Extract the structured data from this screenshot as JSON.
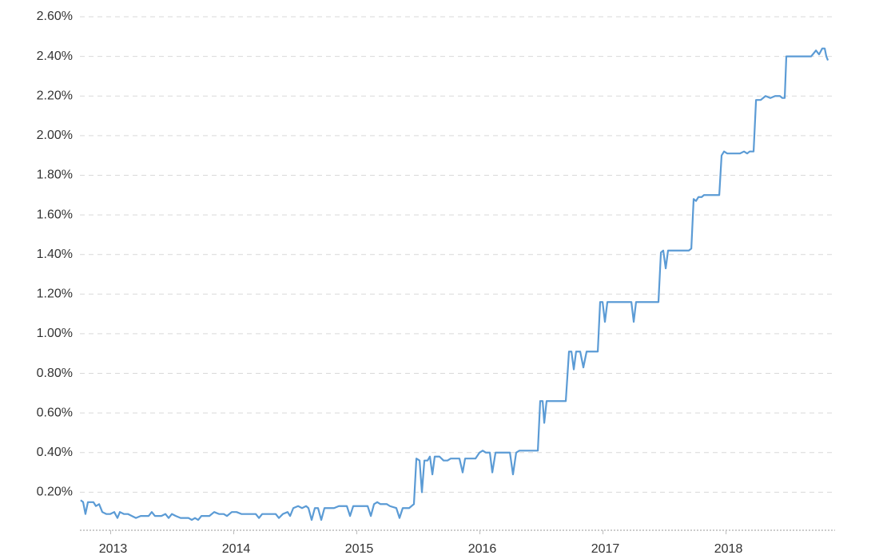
{
  "chart_data": {
    "type": "line",
    "xlim": [
      2012.75,
      2018.886
    ],
    "xticks": [
      2013,
      2014,
      2015,
      2016,
      2017,
      2018
    ],
    "ylim": [
      0,
      2.6
    ],
    "yticks": [
      {
        "value": 0.2,
        "label": "0.20%"
      },
      {
        "value": 0.4,
        "label": "0.40%"
      },
      {
        "value": 0.6,
        "label": "0.60%"
      },
      {
        "value": 0.8,
        "label": "0.80%"
      },
      {
        "value": 1.0,
        "label": "1.00%"
      },
      {
        "value": 1.2,
        "label": "1.20%"
      },
      {
        "value": 1.4,
        "label": "1.40%"
      },
      {
        "value": 1.6,
        "label": "1.60%"
      },
      {
        "value": 1.8,
        "label": "1.80%"
      },
      {
        "value": 2.0,
        "label": "2.00%"
      },
      {
        "value": 2.2,
        "label": "2.20%"
      },
      {
        "value": 2.4,
        "label": "2.40%"
      },
      {
        "value": 2.6,
        "label": "2.60%"
      }
    ],
    "grid": true,
    "color": "#5b9bd5",
    "x": [
      2012.756,
      2012.776,
      2012.795,
      2012.815,
      2012.86,
      2012.88,
      2012.906,
      2012.932,
      2012.964,
      2012.997,
      2013.029,
      2013.055,
      2013.075,
      2013.107,
      2013.14,
      2013.172,
      2013.205,
      2013.244,
      2013.308,
      2013.334,
      2013.36,
      2013.412,
      2013.445,
      2013.471,
      2013.497,
      2013.529,
      2013.568,
      2013.633,
      2013.659,
      2013.685,
      2013.711,
      2013.737,
      2013.802,
      2013.841,
      2013.88,
      2013.919,
      2013.945,
      2013.984,
      2014.023,
      2014.062,
      2014.179,
      2014.205,
      2014.231,
      2014.341,
      2014.367,
      2014.399,
      2014.438,
      2014.458,
      2014.484,
      2014.523,
      2014.555,
      2014.588,
      2014.607,
      2014.633,
      2014.659,
      2014.685,
      2014.711,
      2014.737,
      2014.763,
      2014.815,
      2014.854,
      2014.919,
      2014.945,
      2014.971,
      2015.088,
      2015.114,
      2015.14,
      2015.166,
      2015.192,
      2015.244,
      2015.269,
      2015.321,
      2015.347,
      2015.373,
      2015.425,
      2015.464,
      2015.484,
      2015.51,
      2015.529,
      2015.549,
      2015.575,
      2015.594,
      2015.614,
      2015.633,
      2015.672,
      2015.705,
      2015.737,
      2015.763,
      2015.834,
      2015.86,
      2015.88,
      2015.964,
      2015.997,
      2016.023,
      2016.049,
      2016.081,
      2016.101,
      2016.127,
      2016.244,
      2016.269,
      2016.295,
      2016.321,
      2016.471,
      2016.49,
      2016.51,
      2016.523,
      2016.542,
      2016.698,
      2016.724,
      2016.744,
      2016.763,
      2016.782,
      2016.815,
      2016.841,
      2016.867,
      2016.958,
      2016.977,
      2016.997,
      2017.016,
      2017.036,
      2017.231,
      2017.25,
      2017.269,
      2017.451,
      2017.471,
      2017.49,
      2017.51,
      2017.529,
      2017.698,
      2017.718,
      2017.737,
      2017.756,
      2017.776,
      2017.802,
      2017.821,
      2017.945,
      2017.964,
      2017.984,
      2018.01,
      2018.114,
      2018.146,
      2018.172,
      2018.192,
      2018.224,
      2018.244,
      2018.282,
      2018.321,
      2018.36,
      2018.399,
      2018.438,
      2018.458,
      2018.477,
      2018.49,
      2018.692,
      2018.731,
      2018.756,
      2018.782,
      2018.802,
      2018.815,
      2018.828
    ],
    "values": [
      0.16,
      0.15,
      0.09,
      0.15,
      0.15,
      0.13,
      0.14,
      0.1,
      0.09,
      0.09,
      0.1,
      0.07,
      0.1,
      0.09,
      0.09,
      0.08,
      0.07,
      0.08,
      0.08,
      0.1,
      0.08,
      0.08,
      0.09,
      0.07,
      0.09,
      0.08,
      0.07,
      0.07,
      0.06,
      0.07,
      0.06,
      0.08,
      0.08,
      0.1,
      0.09,
      0.09,
      0.08,
      0.1,
      0.1,
      0.09,
      0.09,
      0.07,
      0.09,
      0.09,
      0.07,
      0.09,
      0.1,
      0.08,
      0.12,
      0.13,
      0.12,
      0.13,
      0.12,
      0.06,
      0.12,
      0.12,
      0.06,
      0.12,
      0.12,
      0.12,
      0.13,
      0.13,
      0.08,
      0.13,
      0.13,
      0.08,
      0.14,
      0.15,
      0.14,
      0.14,
      0.13,
      0.12,
      0.07,
      0.12,
      0.12,
      0.14,
      0.37,
      0.36,
      0.2,
      0.36,
      0.36,
      0.38,
      0.29,
      0.38,
      0.38,
      0.36,
      0.36,
      0.37,
      0.37,
      0.3,
      0.37,
      0.37,
      0.4,
      0.41,
      0.4,
      0.4,
      0.3,
      0.4,
      0.4,
      0.29,
      0.4,
      0.41,
      0.41,
      0.66,
      0.66,
      0.55,
      0.66,
      0.66,
      0.91,
      0.91,
      0.82,
      0.91,
      0.91,
      0.83,
      0.91,
      0.91,
      1.16,
      1.16,
      1.06,
      1.16,
      1.16,
      1.06,
      1.16,
      1.16,
      1.41,
      1.42,
      1.33,
      1.42,
      1.42,
      1.43,
      1.68,
      1.67,
      1.69,
      1.69,
      1.7,
      1.7,
      1.9,
      1.92,
      1.91,
      1.91,
      1.92,
      1.91,
      1.92,
      1.92,
      2.18,
      2.18,
      2.2,
      2.19,
      2.2,
      2.2,
      2.19,
      2.19,
      2.4,
      2.4,
      2.43,
      2.41,
      2.44,
      2.44,
      2.4,
      2.38
    ]
  }
}
